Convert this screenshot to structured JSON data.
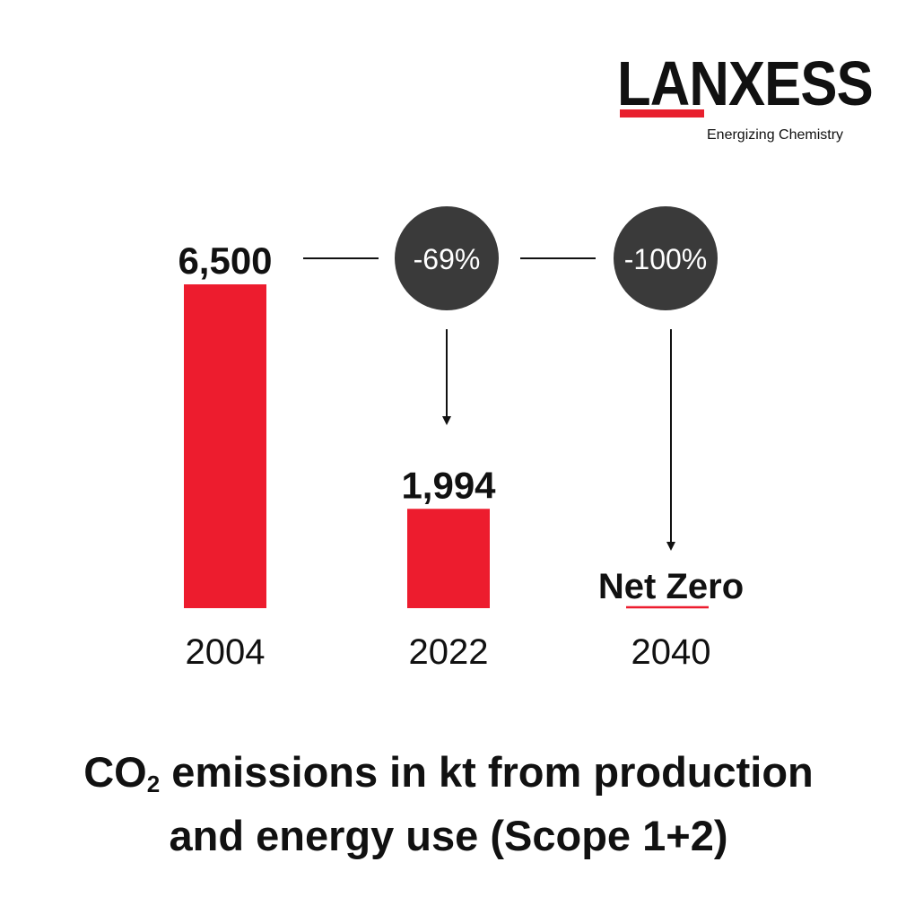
{
  "logo": {
    "wordmark": "LANXESS",
    "tagline": "Energizing Chemistry",
    "bar_color": "#e8202e"
  },
  "chart_data": {
    "type": "bar",
    "categories": [
      "2004",
      "2022",
      "2040"
    ],
    "values": [
      6500,
      1994,
      0
    ],
    "value_labels": [
      "6,500",
      "1,994",
      "Net Zero"
    ],
    "reductions": [
      "-69%",
      "-100%"
    ],
    "ylim": [
      0,
      6500
    ],
    "bar_color": "#ed1c2e",
    "bubble_color": "#3a3a3a",
    "grid": false,
    "legend": "none",
    "title": {
      "before": "CO",
      "subscript": "2",
      "after": " emissions in kt from production",
      "line2": "and energy use (Scope 1+2)"
    }
  }
}
